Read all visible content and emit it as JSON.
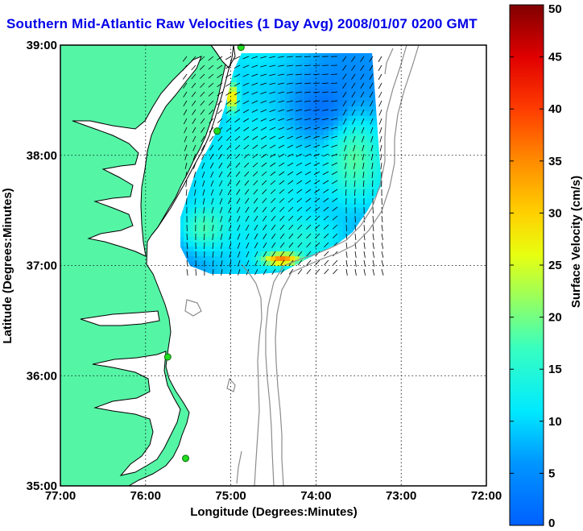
{
  "title": "Southern Mid-Atlantic Raw Velocities (1 Day Avg) 2008/01/07 0200 GMT",
  "colors": {
    "land": "#55f5a6",
    "coast_line": "#000000",
    "bathymetry": "#8c8c8c",
    "station": "#22dd22",
    "title": "#0000e8"
  },
  "map": {
    "xlabel": "Longitude (Degrees:Minutes)",
    "ylabel": "Latitude (Degrees:Minutes)",
    "x_ticks": [
      {
        "value": -77,
        "label": "77:00"
      },
      {
        "value": -76,
        "label": "76:00"
      },
      {
        "value": -75,
        "label": "75:00"
      },
      {
        "value": -74,
        "label": "74:00"
      },
      {
        "value": -73,
        "label": "73:00"
      },
      {
        "value": -72,
        "label": "72:00"
      }
    ],
    "y_ticks": [
      {
        "value": 35,
        "label": "35:00"
      },
      {
        "value": 36,
        "label": "36:00"
      },
      {
        "value": 37,
        "label": "37:00"
      },
      {
        "value": 38,
        "label": "38:00"
      },
      {
        "value": 39,
        "label": "39:00"
      }
    ],
    "xlim": [
      -77,
      -72
    ],
    "ylim": [
      35,
      39
    ],
    "grid": true,
    "stations": [
      {
        "lon": -74.88,
        "lat": 38.98
      },
      {
        "lon": -75.16,
        "lat": 38.22
      },
      {
        "lon": -75.74,
        "lat": 36.17
      },
      {
        "lon": -75.53,
        "lat": 35.25
      }
    ]
  },
  "colorbar": {
    "label": "Surface Velocity (cm/s)",
    "min": 0,
    "max": 50,
    "ticks": [
      {
        "value": 0,
        "label": "0"
      },
      {
        "value": 5,
        "label": "5"
      },
      {
        "value": 10,
        "label": "10"
      },
      {
        "value": 15,
        "label": "15"
      },
      {
        "value": 20,
        "label": "20"
      },
      {
        "value": 25,
        "label": "25"
      },
      {
        "value": 30,
        "label": "30"
      },
      {
        "value": 35,
        "label": "35"
      },
      {
        "value": 40,
        "label": "40"
      },
      {
        "value": 45,
        "label": "45"
      },
      {
        "value": 50,
        "label": "50"
      }
    ]
  }
}
